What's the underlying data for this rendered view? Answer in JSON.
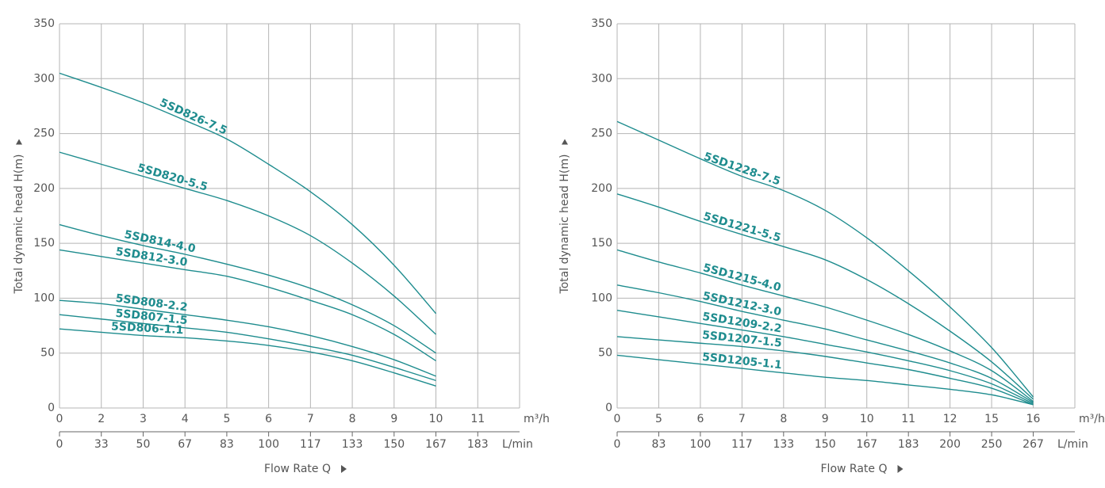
{
  "chart_data": [
    {
      "type": "line",
      "y_label": "Total dynamic head H(m)",
      "x_label": "Flow Rate Q",
      "x_unit": "m³/h",
      "x2_unit": "L/min",
      "categories": [
        "0",
        "2",
        "3",
        "4",
        "5",
        "6",
        "7",
        "8",
        "9",
        "10",
        "11"
      ],
      "x2_categories": [
        "0",
        "33",
        "50",
        "67",
        "83",
        "100",
        "117",
        "133",
        "150",
        "167",
        "183"
      ],
      "ylim": [
        0,
        350
      ],
      "yticks": [
        0,
        50,
        100,
        150,
        200,
        250,
        300,
        350
      ],
      "grid": true,
      "series": [
        {
          "name": "5SD826-7.5",
          "color": "#1e8c8e",
          "values": [
            305,
            292,
            278,
            262,
            245,
            222,
            197,
            167,
            130,
            86,
            null
          ]
        },
        {
          "name": "5SD820-5.5",
          "color": "#1e8c8e",
          "values": [
            233,
            222,
            211,
            200,
            189,
            175,
            157,
            132,
            102,
            67,
            null
          ]
        },
        {
          "name": "5SD814-4.0",
          "color": "#1e8c8e",
          "values": [
            167,
            157,
            148,
            140,
            131,
            121,
            109,
            94,
            75,
            50,
            null
          ]
        },
        {
          "name": "5SD812-3.0",
          "color": "#1e8c8e",
          "values": [
            144,
            138,
            132,
            126,
            120,
            110,
            98,
            85,
            67,
            43,
            null
          ]
        },
        {
          "name": "5SD808-2.2",
          "color": "#1e8c8e",
          "values": [
            98,
            95,
            90,
            85,
            80,
            74,
            66,
            56,
            44,
            29,
            null
          ]
        },
        {
          "name": "5SD807-1.5",
          "color": "#1e8c8e",
          "values": [
            85,
            81,
            77,
            73,
            69,
            63,
            56,
            48,
            37,
            25,
            null
          ]
        },
        {
          "name": "5SD806-1.1",
          "color": "#1e8c8e",
          "values": [
            72,
            69,
            66,
            64,
            61,
            57,
            51,
            43,
            32,
            20,
            null
          ]
        }
      ]
    },
    {
      "type": "line",
      "y_label": "Total dynamic head H(m)",
      "x_label": "Flow Rate Q",
      "x_unit": "m³/h",
      "x2_unit": "L/min",
      "categories": [
        "0",
        "5",
        "6",
        "7",
        "8",
        "9",
        "10",
        "11",
        "12",
        "15",
        "16"
      ],
      "x2_categories": [
        "0",
        "83",
        "100",
        "117",
        "133",
        "150",
        "167",
        "183",
        "200",
        "250",
        "267"
      ],
      "ylim": [
        0,
        350
      ],
      "yticks": [
        0,
        50,
        100,
        150,
        200,
        250,
        300,
        350
      ],
      "grid": true,
      "series": [
        {
          "name": "5SD1228-7.5",
          "color": "#1e8c8e",
          "values": [
            261,
            244,
            227,
            211,
            198,
            180,
            155,
            125,
            92,
            55,
            10
          ]
        },
        {
          "name": "5SD1221-5.5",
          "color": "#1e8c8e",
          "values": [
            195,
            183,
            170,
            158,
            147,
            135,
            117,
            95,
            70,
            42,
            8
          ]
        },
        {
          "name": "5SD1215-4.0",
          "color": "#1e8c8e",
          "values": [
            144,
            133,
            123,
            112,
            102,
            92,
            80,
            67,
            52,
            34,
            6
          ]
        },
        {
          "name": "5SD1212-3.0",
          "color": "#1e8c8e",
          "values": [
            112,
            105,
            97,
            88,
            80,
            72,
            62,
            52,
            41,
            27,
            5
          ]
        },
        {
          "name": "5SD1209-2.2",
          "color": "#1e8c8e",
          "values": [
            89,
            83,
            77,
            71,
            65,
            58,
            51,
            43,
            34,
            22,
            4
          ]
        },
        {
          "name": "5SD1207-1.5",
          "color": "#1e8c8e",
          "values": [
            65,
            62,
            59,
            56,
            52,
            47,
            41,
            35,
            27,
            18,
            3
          ]
        },
        {
          "name": "5SD1205-1.1",
          "color": "#1e8c8e",
          "values": [
            48,
            44,
            40,
            36,
            32,
            28,
            25,
            21,
            17,
            12,
            3
          ]
        }
      ]
    }
  ]
}
